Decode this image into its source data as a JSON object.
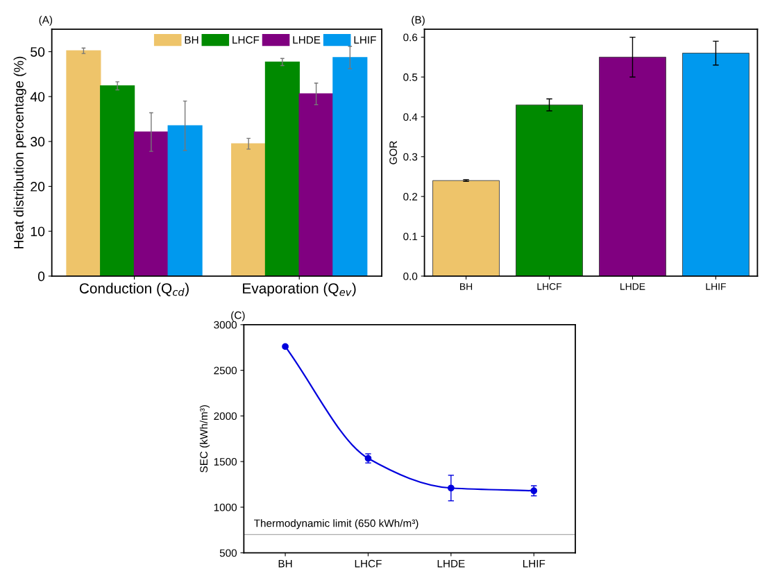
{
  "chart_data": [
    {
      "type": "bar",
      "title": "(A)",
      "ylabel": "Heat distribution percentage (%)",
      "categories": [
        "Conduction (Q$_{cd}$)",
        "Evaporation (Q$_{ev}$)"
      ],
      "series": [
        {
          "name": "BH",
          "color": "#eec46a",
          "values": [
            50.2,
            29.5
          ],
          "errors": [
            0.6,
            1.2
          ]
        },
        {
          "name": "LHCF",
          "color": "#008a00",
          "values": [
            42.4,
            47.7
          ],
          "errors": [
            0.9,
            0.8
          ]
        },
        {
          "name": "LHDE",
          "color": "#800080",
          "values": [
            32.1,
            40.6
          ],
          "errors": [
            4.3,
            2.4
          ]
        },
        {
          "name": "LHIF",
          "color": "#0099ee",
          "values": [
            33.5,
            48.7
          ],
          "errors": [
            5.5,
            2.5
          ]
        }
      ],
      "ylim": [
        0,
        55
      ],
      "yticks": [
        0,
        10,
        20,
        30,
        40,
        50
      ],
      "legend": "top right",
      "grid": false
    },
    {
      "type": "bar",
      "title": "(B)",
      "ylabel": "GOR",
      "categories": [
        "BH",
        "LHCF",
        "LHDE",
        "LHIF"
      ],
      "values": [
        0.24,
        0.43,
        0.55,
        0.56
      ],
      "errors": [
        0.002,
        0.015,
        0.05,
        0.03
      ],
      "colors": [
        "#eec46a",
        "#008a00",
        "#800080",
        "#0099ee"
      ],
      "ylim": [
        0,
        0.62
      ],
      "yticks": [
        {
          "value": 0,
          "label": "0.0"
        },
        0.1,
        0.2,
        0.3,
        0.4,
        0.5,
        0.6
      ],
      "grid": false
    },
    {
      "type": "line",
      "title": "(C)",
      "ylabel": "SEC (kWh/m³)",
      "categories": [
        "BH",
        "LHCF",
        "LHDE",
        "LHIF"
      ],
      "series": [
        {
          "color": "#0000dd",
          "values": [
            2760,
            1535,
            1210,
            1180
          ],
          "errors": [
            15,
            50,
            140,
            55
          ]
        }
      ],
      "ylim": [
        500,
        3000
      ],
      "yticks": [
        500,
        1000,
        1500,
        2000,
        2500,
        3000
      ],
      "marker": "circle",
      "line_style": "solid",
      "grid": false,
      "ref_lines": [
        {
          "axis": "y",
          "value": 700,
          "label": "Thermodynamic limit (650 kWh/m³)",
          "color": "#aaaaaa"
        }
      ]
    }
  ]
}
